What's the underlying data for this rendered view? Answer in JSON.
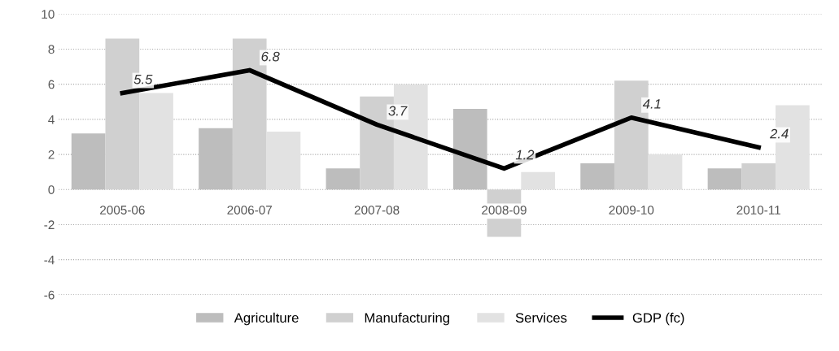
{
  "chart_data": {
    "type": "bar",
    "categories": [
      "2005-06",
      "2006-07",
      "2007-08",
      "2008-09",
      "2009-10",
      "2010-11"
    ],
    "series": [
      {
        "name": "Agriculture",
        "color": "#bdbdbd",
        "values": [
          3.2,
          3.5,
          1.2,
          4.6,
          1.5,
          1.2
        ]
      },
      {
        "name": "Manufacturing",
        "color": "#d0d0d0",
        "values": [
          8.6,
          8.6,
          5.3,
          -2.7,
          6.2,
          1.5
        ]
      },
      {
        "name": "Services",
        "color": "#e2e2e2",
        "values": [
          5.5,
          3.3,
          6.0,
          1.0,
          2.0,
          4.8
        ]
      },
      {
        "name": "GDP (fc)",
        "type": "line",
        "color": "#000000",
        "values": [
          5.5,
          6.8,
          3.7,
          1.2,
          4.1,
          2.4
        ],
        "value_labels": [
          "5.5",
          "6.8",
          "3.7",
          "1.2",
          "4.1",
          "2.4"
        ]
      }
    ],
    "ylim": [
      -6,
      10
    ],
    "yticks": [
      -6,
      -4,
      -2,
      0,
      2,
      4,
      6,
      8,
      10
    ],
    "grid": "y",
    "legend": "bottom",
    "marker": "none",
    "line_style": "solid"
  }
}
